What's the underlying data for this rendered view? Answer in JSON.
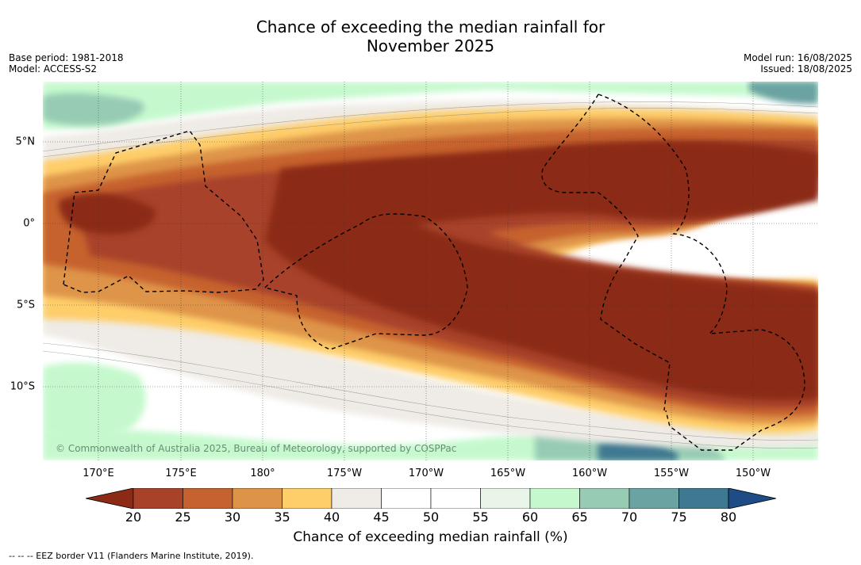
{
  "title_line1": "Chance of exceeding the median rainfall for",
  "title_line2": "November 2025",
  "meta": {
    "base_period": "Base period: 1981-2018",
    "model": "Model: ACCESS-S2",
    "model_run": "Model run: 16/08/2025",
    "issued": "Issued: 18/08/2025"
  },
  "lat_labels": [
    "5°N",
    "0°",
    "5°S",
    "10°S"
  ],
  "lon_labels": [
    "170°E",
    "175°E",
    "180°",
    "175°W",
    "170°W",
    "165°W",
    "160°W",
    "155°W",
    "150°W"
  ],
  "colorbar": {
    "ticks": [
      "20",
      "25",
      "30",
      "35",
      "40",
      "45",
      "50",
      "55",
      "60",
      "65",
      "70",
      "75",
      "80"
    ],
    "colors": [
      "#8b2a15",
      "#a8432a",
      "#c6622f",
      "#de9448",
      "#fece6a",
      "#efebe6",
      "#ffffff",
      "#ffffff",
      "#e8f5e8",
      "#c5f9cd",
      "#97cbb4",
      "#6ba3a2",
      "#3f7891",
      "#1d4d84"
    ],
    "label": "Chance of exceeding median rainfall (%)"
  },
  "credit": "© Commonwealth of Australia 2025, Bureau of Meteorology, supported by COSPPac",
  "footnote": "--  --  -- EEZ border V11 (Flanders Marine Institute, 2019)."
}
